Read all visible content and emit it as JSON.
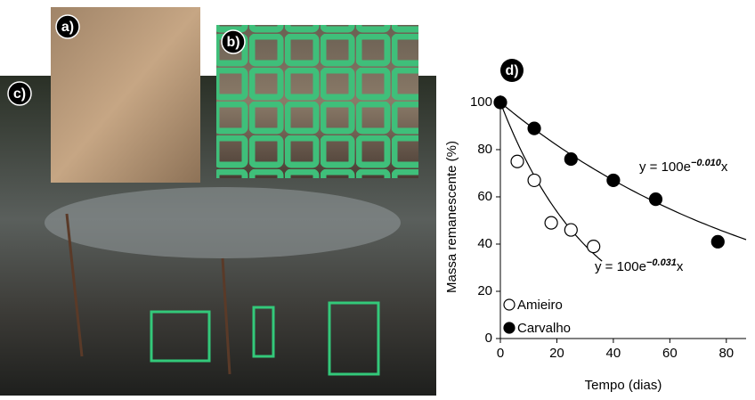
{
  "panels": [
    "a)",
    "b)",
    "c)"
  ],
  "chart_data": {
    "type": "scatter",
    "panel_label": "d)",
    "xlabel": "Tempo (dias)",
    "ylabel": "Massa remanescente (%)",
    "xlim": [
      0,
      87
    ],
    "ylim": [
      0,
      103
    ],
    "xticks": [
      0,
      20,
      40,
      60,
      80
    ],
    "yticks": [
      0,
      20,
      40,
      60,
      80,
      100
    ],
    "series": [
      {
        "name": "Amieiro",
        "color": "#ffffff",
        "x": [
          6,
          12,
          18,
          25,
          33
        ],
        "values": [
          75,
          67,
          49,
          46,
          39
        ],
        "fit": {
          "a": 100,
          "k": -0.031,
          "prefix": "y = 100e",
          "exponent": "−0.031",
          "var": "x"
        }
      },
      {
        "name": "Carvalho",
        "color": "#000000",
        "x": [
          0,
          12,
          25,
          40,
          55,
          77
        ],
        "values": [
          100,
          89,
          76,
          67,
          59,
          41
        ],
        "fit": {
          "a": 100,
          "k": -0.01,
          "prefix": "y = 100e",
          "exponent": "−0.010",
          "var": "x"
        }
      }
    ]
  }
}
